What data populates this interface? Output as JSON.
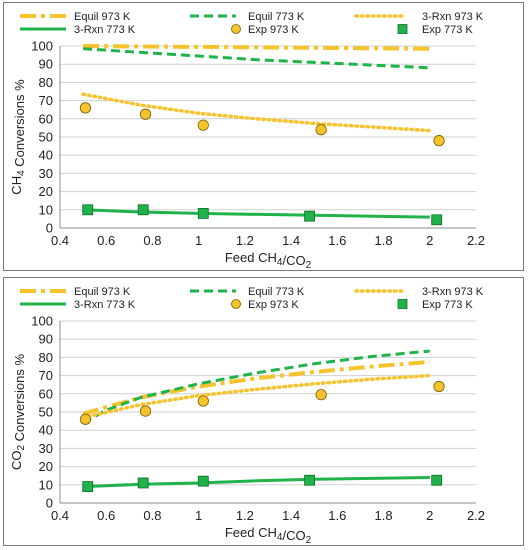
{
  "colors": {
    "equil": "#f5c32c",
    "green": "#1fb34a",
    "marker_yellow": "#f5c32c",
    "marker_green": "#1fb34a",
    "marker_edge": "#7a5c00",
    "grid": "#d0d0d0"
  },
  "chart_data": [
    {
      "type": "line",
      "xlabel": "Feed CH4/CO2",
      "ylabel": "CH4 Conversions %",
      "xlim": [
        0.4,
        2.2
      ],
      "ylim": [
        0,
        100
      ],
      "xticks": [
        "0.4",
        "0.6",
        "0.8",
        "1",
        "1.2",
        "1.4",
        "1.6",
        "1.8",
        "2",
        "2.2"
      ],
      "yticks": [
        "0",
        "10",
        "20",
        "30",
        "40",
        "50",
        "60",
        "70",
        "80",
        "90",
        "100"
      ],
      "grid": "horizontal",
      "legend_position": "top",
      "series": [
        {
          "name": "Equil 973 K",
          "style": "long-dash",
          "color": "#f5c32c",
          "x": [
            0.5,
            1.0,
            1.5,
            2.0
          ],
          "y": [
            100,
            99.5,
            99,
            98.5
          ]
        },
        {
          "name": "Equil 773 K",
          "style": "dash",
          "color": "#1fb34a",
          "x": [
            0.5,
            0.75,
            1.0,
            1.25,
            1.5,
            1.75,
            2.0
          ],
          "y": [
            98.5,
            96.5,
            94.5,
            92.5,
            91,
            89.5,
            88
          ]
        },
        {
          "name": "3-Rxn 973 K",
          "style": "dot",
          "color": "#f5c32c",
          "x": [
            0.5,
            0.75,
            1.0,
            1.25,
            1.5,
            1.75,
            2.0
          ],
          "y": [
            73.5,
            67.5,
            63,
            60,
            57.5,
            55.5,
            53.5
          ]
        },
        {
          "name": "3-Rxn 773 K",
          "style": "solid",
          "color": "#1fb34a",
          "x": [
            0.5,
            0.75,
            1.0,
            1.5,
            2.0
          ],
          "y": [
            10,
            8.8,
            8,
            7,
            6
          ]
        },
        {
          "name": "Exp 973 K",
          "style": "circle",
          "color": "#f5c32c",
          "x": [
            0.51,
            0.77,
            1.02,
            1.53,
            2.04
          ],
          "y": [
            66,
            62.5,
            56.5,
            54,
            48
          ]
        },
        {
          "name": "Exp 773 K",
          "style": "square",
          "color": "#1fb34a",
          "x": [
            0.52,
            0.76,
            1.02,
            1.48,
            2.03
          ],
          "y": [
            10,
            10,
            8,
            6.5,
            4.5
          ]
        }
      ]
    },
    {
      "type": "line",
      "xlabel": "Feed CH4/CO2",
      "ylabel": "CO2 Conversions %",
      "xlim": [
        0.4,
        2.2
      ],
      "ylim": [
        0,
        100
      ],
      "xticks": [
        "0.4",
        "0.6",
        "0.8",
        "1",
        "1.2",
        "1.4",
        "1.6",
        "1.8",
        "2",
        "2.2"
      ],
      "yticks": [
        "0",
        "10",
        "20",
        "30",
        "40",
        "50",
        "60",
        "70",
        "80",
        "90",
        "100"
      ],
      "grid": "horizontal",
      "legend_position": "top",
      "series": [
        {
          "name": "Equil 973 K",
          "style": "long-dash",
          "color": "#f5c32c",
          "x": [
            0.5,
            0.75,
            1.0,
            1.25,
            1.5,
            1.75,
            2.0
          ],
          "y": [
            49,
            58,
            64,
            68.5,
            72,
            75,
            77.5
          ]
        },
        {
          "name": "Equil 773 K",
          "style": "dash",
          "color": "#1fb34a",
          "x": [
            0.5,
            0.6,
            0.75,
            1.0,
            1.25,
            1.5,
            1.75,
            2.0
          ],
          "y": [
            44,
            51,
            58,
            65.5,
            71.5,
            76.5,
            80.5,
            83.5
          ]
        },
        {
          "name": "3-Rxn 973 K",
          "style": "dot",
          "color": "#f5c32c",
          "x": [
            0.5,
            0.75,
            1.0,
            1.25,
            1.5,
            1.75,
            2.0
          ],
          "y": [
            47,
            54,
            59,
            62.5,
            65.5,
            68,
            70
          ]
        },
        {
          "name": "3-Rxn 773 K",
          "style": "solid",
          "color": "#1fb34a",
          "x": [
            0.5,
            0.75,
            1.0,
            1.25,
            1.5,
            1.75,
            2.0
          ],
          "y": [
            9,
            10.3,
            11,
            12.2,
            13,
            13.5,
            14
          ]
        },
        {
          "name": "Exp 973 K",
          "style": "circle",
          "color": "#f5c32c",
          "x": [
            0.51,
            0.77,
            1.02,
            1.53,
            2.04
          ],
          "y": [
            46,
            50.5,
            56,
            59.5,
            64
          ]
        },
        {
          "name": "Exp 773 K",
          "style": "square",
          "color": "#1fb34a",
          "x": [
            0.52,
            0.76,
            1.02,
            1.48,
            2.03
          ],
          "y": [
            9,
            11,
            12,
            12.5,
            12.5
          ]
        }
      ]
    }
  ]
}
